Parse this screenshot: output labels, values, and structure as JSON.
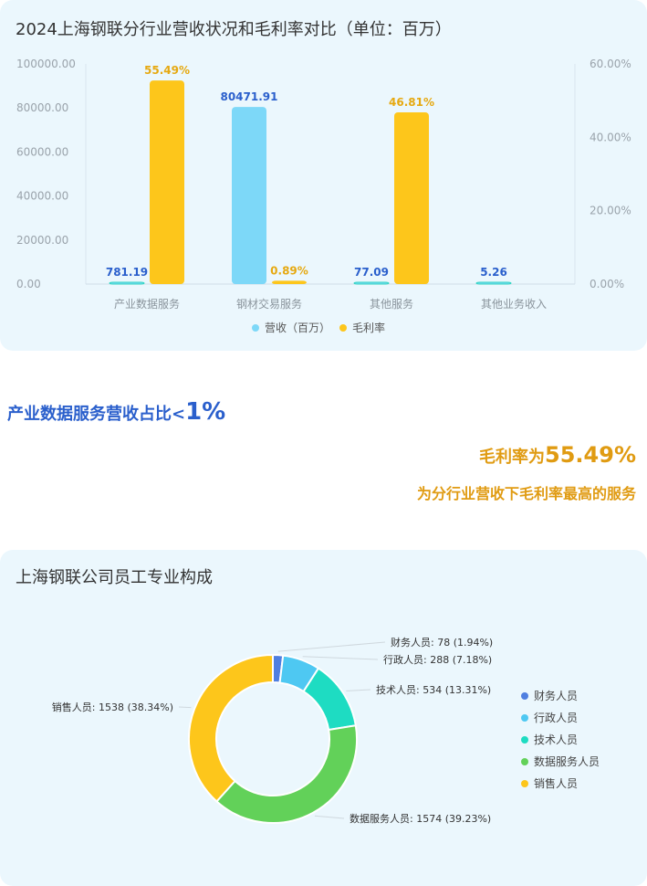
{
  "charts": {
    "bar": {
      "title": "2024上海钢联分行业营收状况和毛利率对比（单位：百万）",
      "type": "bar",
      "categories": [
        "产业数据服务",
        "钢材交易服务",
        "其他服务",
        "其他业务收入"
      ],
      "series": [
        {
          "name": "营收（百万）",
          "axis": "left",
          "color": "#7dd8f8",
          "values": [
            781.19,
            80471.91,
            77.09,
            5.26
          ],
          "labels": [
            "781.19",
            "80471.91",
            "77.09",
            "5.26"
          ]
        },
        {
          "name": "毛利率",
          "axis": "right",
          "color": "#fdc61b",
          "values": [
            55.49,
            0.89,
            46.81,
            null
          ],
          "labels": [
            "55.49%",
            "0.89%",
            "46.81%",
            ""
          ]
        }
      ],
      "y_left": {
        "min": 0,
        "max": 100000,
        "ticks": [
          "0.00",
          "20000.00",
          "40000.00",
          "60000.00",
          "80000.00",
          "100000.00"
        ]
      },
      "y_right": {
        "min": 0,
        "max": 60,
        "ticks": [
          "0.00%",
          "20.00%",
          "40.00%",
          "60.00%"
        ]
      },
      "legend_position": "bottom-center"
    },
    "donut": {
      "title": "上海钢联公司员工专业构成",
      "type": "pie",
      "slices": [
        {
          "name": "财务人员",
          "value": 78,
          "label": "财务人员: 78 (1.94%)",
          "color": "#4f7fe0"
        },
        {
          "name": "行政人员",
          "value": 288,
          "label": "行政人员: 288 (7.18%)",
          "color": "#4ec8f2"
        },
        {
          "name": "技术人员",
          "value": 534,
          "label": "技术人员: 534 (13.31%)",
          "color": "#1edcc2"
        },
        {
          "name": "数据服务人员",
          "value": 1574,
          "label": "数据服务人员: 1574 (39.23%)",
          "color": "#62d159"
        },
        {
          "name": "销售人员",
          "value": 1538,
          "label": "销售人员: 1538 (38.34%)",
          "color": "#fdc61b"
        }
      ],
      "legend_position": "right"
    }
  },
  "highlights": {
    "line1_prefix": "产业数据服务营收占比<",
    "line1_value": "1%",
    "line2_prefix": "毛利率为",
    "line2_value": "55.49%",
    "line3": "为分行业营收下毛利率最高的服务"
  }
}
